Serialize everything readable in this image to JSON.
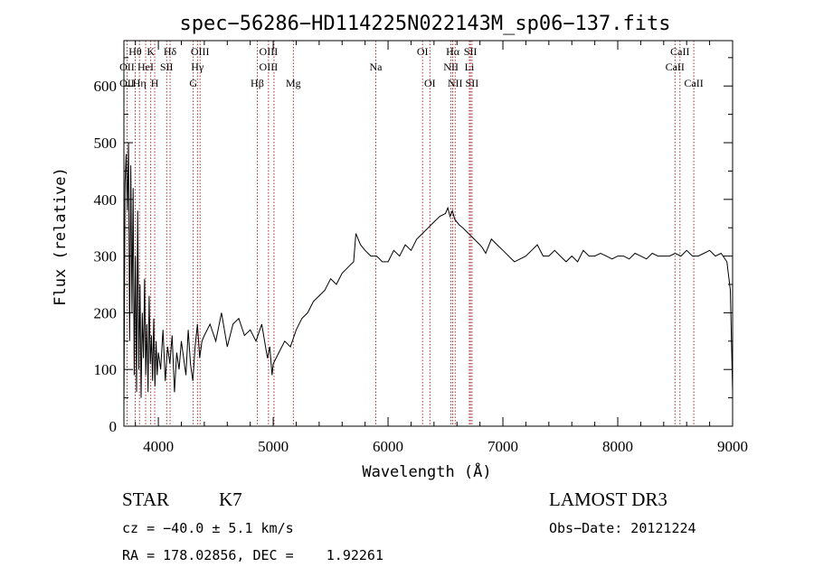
{
  "chart_data": {
    "type": "line",
    "title": "spec−56286−HD114225N022143M_sp06−137.fits",
    "xlabel": "Wavelength (Å)",
    "ylabel": "Flux (relative)",
    "xlim": [
      3700,
      9000
    ],
    "ylim": [
      0,
      680
    ],
    "x_ticks": [
      4000,
      5000,
      6000,
      7000,
      8000,
      9000
    ],
    "y_ticks": [
      0,
      100,
      200,
      300,
      400,
      500,
      600
    ],
    "series": [
      {
        "name": "spectrum",
        "x": [
          3700,
          3710,
          3720,
          3730,
          3740,
          3750,
          3760,
          3770,
          3780,
          3790,
          3800,
          3810,
          3820,
          3830,
          3840,
          3850,
          3860,
          3870,
          3880,
          3890,
          3900,
          3910,
          3920,
          3930,
          3940,
          3950,
          3960,
          3970,
          3980,
          3990,
          4000,
          4020,
          4040,
          4060,
          4080,
          4100,
          4120,
          4140,
          4160,
          4180,
          4200,
          4220,
          4240,
          4260,
          4280,
          4300,
          4320,
          4340,
          4360,
          4380,
          4400,
          4450,
          4500,
          4550,
          4600,
          4650,
          4700,
          4750,
          4800,
          4850,
          4900,
          4950,
          4970,
          4990,
          5000,
          5050,
          5100,
          5150,
          5200,
          5250,
          5300,
          5350,
          5400,
          5450,
          5500,
          5550,
          5600,
          5650,
          5700,
          5720,
          5740,
          5760,
          5800,
          5850,
          5900,
          5950,
          6000,
          6050,
          6100,
          6150,
          6200,
          6250,
          6300,
          6350,
          6400,
          6450,
          6500,
          6520,
          6540,
          6560,
          6580,
          6600,
          6620,
          6650,
          6700,
          6750,
          6800,
          6820,
          6850,
          6900,
          6950,
          7000,
          7050,
          7100,
          7150,
          7200,
          7250,
          7300,
          7350,
          7400,
          7450,
          7500,
          7550,
          7600,
          7650,
          7700,
          7750,
          7800,
          7850,
          7900,
          7950,
          8000,
          8050,
          8100,
          8150,
          8200,
          8250,
          8300,
          8350,
          8400,
          8450,
          8500,
          8550,
          8600,
          8650,
          8700,
          8750,
          8800,
          8850,
          8900,
          8950,
          8980,
          9000
        ],
        "y": [
          30,
          430,
          480,
          380,
          500,
          150,
          460,
          200,
          420,
          90,
          300,
          60,
          380,
          100,
          250,
          50,
          200,
          120,
          260,
          90,
          180,
          60,
          230,
          110,
          160,
          80,
          190,
          70,
          150,
          90,
          130,
          100,
          170,
          80,
          140,
          110,
          160,
          60,
          130,
          100,
          150,
          120,
          90,
          170,
          110,
          80,
          140,
          180,
          120,
          150,
          160,
          180,
          150,
          200,
          140,
          180,
          190,
          160,
          170,
          150,
          180,
          120,
          140,
          90,
          110,
          130,
          150,
          140,
          170,
          190,
          200,
          220,
          230,
          240,
          260,
          250,
          270,
          280,
          290,
          340,
          330,
          320,
          310,
          300,
          300,
          290,
          290,
          310,
          300,
          320,
          310,
          330,
          340,
          350,
          360,
          370,
          375,
          385,
          370,
          380,
          365,
          360,
          355,
          350,
          340,
          330,
          320,
          315,
          305,
          330,
          320,
          310,
          300,
          290,
          295,
          300,
          310,
          320,
          300,
          300,
          310,
          300,
          290,
          300,
          290,
          310,
          300,
          300,
          305,
          300,
          295,
          300,
          300,
          295,
          305,
          300,
          295,
          305,
          300,
          300,
          300,
          305,
          300,
          310,
          300,
          300,
          305,
          310,
          300,
          305,
          290,
          240,
          60
        ]
      }
    ],
    "annotations": {
      "row1": [
        {
          "label": "Hθ",
          "x": 3798
        },
        {
          "label": "K",
          "x": 3934
        },
        {
          "label": "Hδ",
          "x": 4102
        },
        {
          "label": "OIII",
          "x": 4363
        },
        {
          "label": "OIII",
          "x": 4959
        },
        {
          "label": "OI",
          "x": 6300
        },
        {
          "label": "Hα",
          "x": 6563
        },
        {
          "label": "SII",
          "x": 6717
        },
        {
          "label": "CaII",
          "x": 8542
        }
      ],
      "row2": [
        {
          "label": "OII",
          "x": 3727
        },
        {
          "label": "HeI",
          "x": 3889
        },
        {
          "label": "SII",
          "x": 4072
        },
        {
          "label": "Hγ",
          "x": 4340
        },
        {
          "label": "OIII",
          "x": 4959
        },
        {
          "label": "Na",
          "x": 5893
        },
        {
          "label": "NII",
          "x": 6548
        },
        {
          "label": "Li",
          "x": 6708
        },
        {
          "label": "CaII",
          "x": 8498
        }
      ],
      "row3": [
        {
          "label": "OII",
          "x": 3727
        },
        {
          "label": "Hη",
          "x": 3835
        },
        {
          "label": "H",
          "x": 3968
        },
        {
          "label": "G",
          "x": 4304
        },
        {
          "label": "Hβ",
          "x": 4861
        },
        {
          "label": "Mg",
          "x": 5175
        },
        {
          "label": "OI",
          "x": 6364
        },
        {
          "label": "NII",
          "x": 6584
        },
        {
          "label": "SII",
          "x": 6731
        },
        {
          "label": "CaII",
          "x": 8662
        }
      ],
      "lines_x": [
        3727,
        3798,
        3835,
        3889,
        3934,
        3968,
        4072,
        4102,
        4304,
        4340,
        4363,
        4861,
        4959,
        5007,
        5175,
        5893,
        6300,
        6364,
        6548,
        6563,
        6584,
        6708,
        6717,
        6731,
        8498,
        8542,
        8662
      ]
    }
  },
  "info": {
    "class": "STAR",
    "subclass": "K7",
    "cz": "cz = −40.0 ± 5.1 km/s",
    "radec": "RA = 178.02856, DEC =    1.92261",
    "survey": "LAMOST DR3",
    "obsdate": "Obs−Date: 20121224"
  },
  "colors": {
    "spectrum": "#000000",
    "line_markers": "#8b0000",
    "axis": "#000000"
  }
}
